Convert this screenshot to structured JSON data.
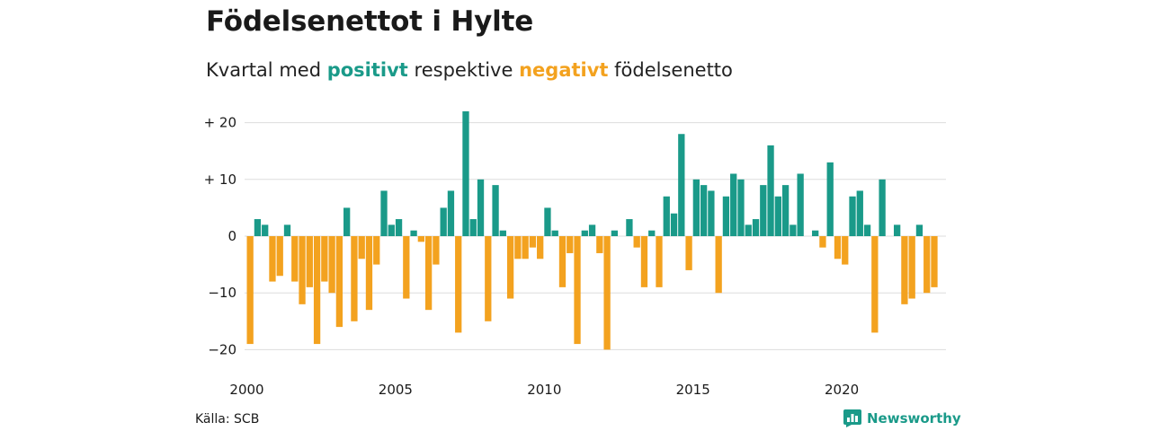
{
  "title": "Födelsenettot i Hylte",
  "subtitle": {
    "prefix": "Kvartal med",
    "positive_word": "positivt",
    "middle": "respektive",
    "negative_word": "negativt",
    "suffix": "födelsenetto"
  },
  "source": "Källa: SCB",
  "brand": {
    "name": "Newsworthy",
    "icon": "newsworthy-logo-icon"
  },
  "colors": {
    "positive": "#1a9a89",
    "negative": "#f3a21f",
    "grid": "#dddddd",
    "text": "#1a1a1a"
  },
  "chart_data": {
    "type": "bar",
    "x_start": "2000 Q1",
    "x_ticks": [
      "2000",
      "2005",
      "2010",
      "2015",
      "2020"
    ],
    "y_ticks": [
      "−20",
      "−10",
      "0",
      "+ 10",
      "+ 20"
    ],
    "y_tick_values": [
      -20,
      -10,
      0,
      10,
      20
    ],
    "ylim": [
      -22,
      22
    ],
    "grid": true,
    "values": [
      -19,
      3,
      2,
      -8,
      -7,
      2,
      -8,
      -12,
      -9,
      -19,
      -8,
      -10,
      -16,
      5,
      -15,
      -4,
      -13,
      -5,
      8,
      2,
      3,
      -11,
      1,
      -1,
      -13,
      -5,
      5,
      8,
      -17,
      22,
      3,
      10,
      -15,
      9,
      1,
      -11,
      -4,
      -4,
      -2,
      -4,
      5,
      1,
      -9,
      -3,
      -19,
      1,
      2,
      -3,
      -20,
      1,
      0,
      3,
      -2,
      -9,
      1,
      -9,
      7,
      4,
      18,
      -6,
      10,
      9,
      8,
      -10,
      7,
      11,
      10,
      2,
      3,
      9,
      16,
      7,
      9,
      2,
      11,
      0,
      1,
      -2,
      13,
      -4,
      -5,
      7,
      8,
      2,
      -17,
      10,
      0,
      2,
      -12,
      -11,
      2,
      -10,
      -9
    ]
  }
}
